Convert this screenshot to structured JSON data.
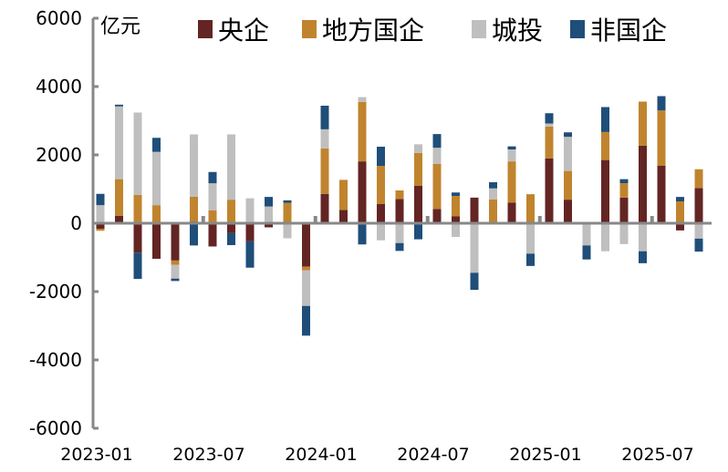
{
  "chart_data": {
    "type": "bar",
    "stacked": true,
    "unit_label": "亿元",
    "ylim": [
      -6000,
      6000
    ],
    "yticks": [
      6000,
      4000,
      2000,
      0,
      -2000,
      -4000,
      -6000
    ],
    "ytick_labels": [
      "6000",
      "4000",
      "2000",
      "0",
      "-2000",
      "-4000",
      "-6000"
    ],
    "legend_placement": "top",
    "categories": [
      "2023-01",
      "2023-02",
      "2023-03",
      "2023-04",
      "2023-05",
      "2023-06",
      "2023-07",
      "2023-08",
      "2023-09",
      "2023-10",
      "2023-11",
      "2023-12",
      "2024-01",
      "2024-02",
      "2024-03",
      "2024-04",
      "2024-05",
      "2024-06",
      "2024-07",
      "2024-08",
      "2024-09",
      "2024-10",
      "2024-11",
      "2024-12",
      "2025-01",
      "2025-02",
      "2025-03",
      "2025-04",
      "2025-05",
      "2025-06",
      "2025-07",
      "2025-08",
      "2025-09"
    ],
    "xtick_labels": [
      "2023-01",
      "2023-07",
      "2024-01",
      "2024-07",
      "2025-01",
      "2025-07"
    ],
    "series": [
      {
        "name": "央企",
        "color": "#632523",
        "values": [
          -160,
          220,
          -860,
          -1040,
          -1090,
          50,
          -680,
          -290,
          -530,
          -120,
          0,
          -1270,
          860,
          390,
          1810,
          560,
          710,
          1100,
          420,
          200,
          750,
          0,
          600,
          0,
          1900,
          690,
          0,
          1850,
          750,
          2270,
          1680,
          -210,
          1030
        ]
      },
      {
        "name": "地方国企",
        "color": "#C0842E",
        "values": [
          -60,
          1070,
          830,
          530,
          -130,
          730,
          380,
          690,
          0,
          40,
          600,
          -110,
          1330,
          880,
          1740,
          1120,
          250,
          960,
          1320,
          600,
          0,
          700,
          1210,
          850,
          930,
          840,
          0,
          820,
          420,
          1290,
          1620,
          640,
          550
        ]
      },
      {
        "name": "城投",
        "color": "#BFBFBF",
        "values": [
          530,
          2130,
          2410,
          1560,
          -400,
          1820,
          790,
          1910,
          730,
          450,
          -440,
          -1040,
          560,
          -40,
          140,
          -500,
          -580,
          250,
          470,
          -400,
          -1450,
          320,
          350,
          -890,
          90,
          1000,
          -650,
          -820,
          -610,
          -820,
          -30,
          0,
          -450
        ]
      },
      {
        "name": "非国企",
        "color": "#1F4E79",
        "values": [
          330,
          50,
          -770,
          410,
          -70,
          -650,
          330,
          -350,
          -770,
          280,
          70,
          -870,
          690,
          0,
          -620,
          560,
          -230,
          -470,
          400,
          100,
          -500,
          180,
          90,
          -360,
          300,
          130,
          -410,
          730,
          120,
          -350,
          420,
          130,
          -380
        ]
      }
    ]
  }
}
